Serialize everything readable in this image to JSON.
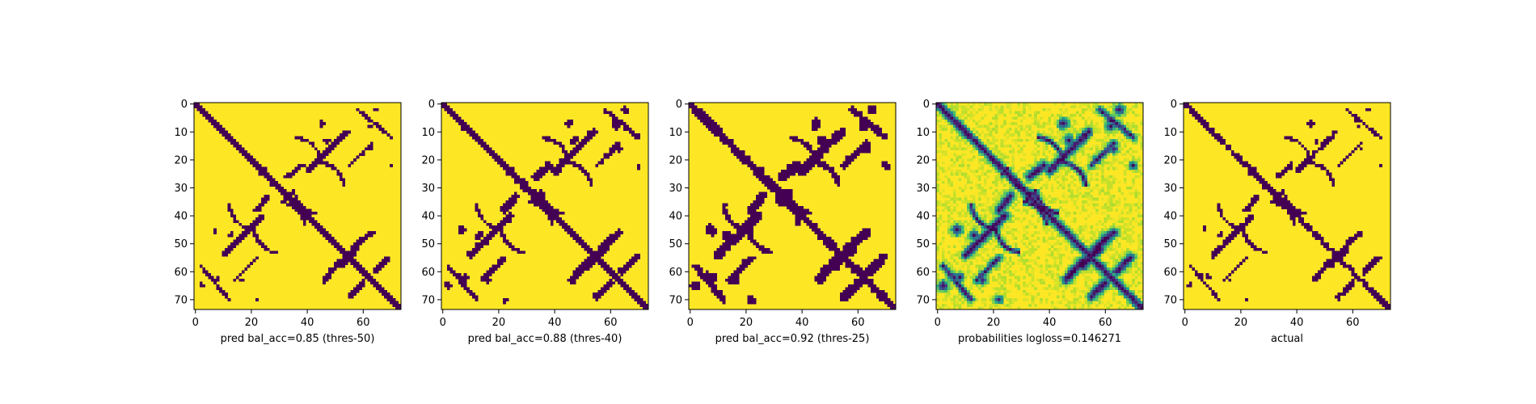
{
  "figure": {
    "background": "#ffffff",
    "colormap": "viridis",
    "colors": {
      "low": "#440154",
      "high": "#fde725"
    }
  },
  "chart_data": [
    {
      "type": "heatmap",
      "mode": "binary",
      "title": "",
      "xlabel": "pred bal_acc=0.85 (thres-50)",
      "ylabel": "",
      "size": 74,
      "xticks": [
        0,
        20,
        40,
        60
      ],
      "yticks": [
        0,
        10,
        20,
        30,
        40,
        50,
        60,
        70
      ],
      "xlim": [
        0,
        73
      ],
      "ylim": [
        73,
        0
      ],
      "extra_width": 0.6,
      "arc_scale": 0.85,
      "noise_cut": 0.6
    },
    {
      "type": "heatmap",
      "mode": "binary",
      "title": "",
      "xlabel": "pred bal_acc=0.88 (thres-40)",
      "ylabel": "",
      "size": 74,
      "xticks": [
        0,
        20,
        40,
        60
      ],
      "yticks": [
        0,
        10,
        20,
        30,
        40,
        50,
        60,
        70
      ],
      "xlim": [
        0,
        73
      ],
      "ylim": [
        73,
        0
      ],
      "extra_width": 0.9,
      "arc_scale": 1.0,
      "noise_cut": 0.55
    },
    {
      "type": "heatmap",
      "mode": "binary",
      "title": "",
      "xlabel": "pred bal_acc=0.92 (thres-25)",
      "ylabel": "",
      "size": 74,
      "xticks": [
        0,
        20,
        40,
        60
      ],
      "yticks": [
        0,
        10,
        20,
        30,
        40,
        50,
        60,
        70
      ],
      "xlim": [
        0,
        73
      ],
      "ylim": [
        73,
        0
      ],
      "extra_width": 1.3,
      "arc_scale": 1.2,
      "noise_cut": 0.5
    },
    {
      "type": "heatmap",
      "mode": "probability",
      "title": "",
      "xlabel": "probabilities logloss=0.146271",
      "ylabel": "",
      "size": 74,
      "xticks": [
        0,
        20,
        40,
        60
      ],
      "yticks": [
        0,
        10,
        20,
        30,
        40,
        50,
        60,
        70
      ],
      "xlim": [
        0,
        73
      ],
      "ylim": [
        73,
        0
      ],
      "extra_width": 1.0,
      "arc_scale": 1.0,
      "noise_cut": 0.5
    },
    {
      "type": "heatmap",
      "mode": "binary",
      "title": "",
      "xlabel": "actual",
      "ylabel": "",
      "size": 74,
      "xticks": [
        0,
        20,
        40,
        60
      ],
      "yticks": [
        0,
        10,
        20,
        30,
        40,
        50,
        60,
        70
      ],
      "xlim": [
        0,
        73
      ],
      "ylim": [
        73,
        0
      ],
      "extra_width": 0.4,
      "arc_scale": 0.9,
      "noise_cut": 0.65
    }
  ]
}
